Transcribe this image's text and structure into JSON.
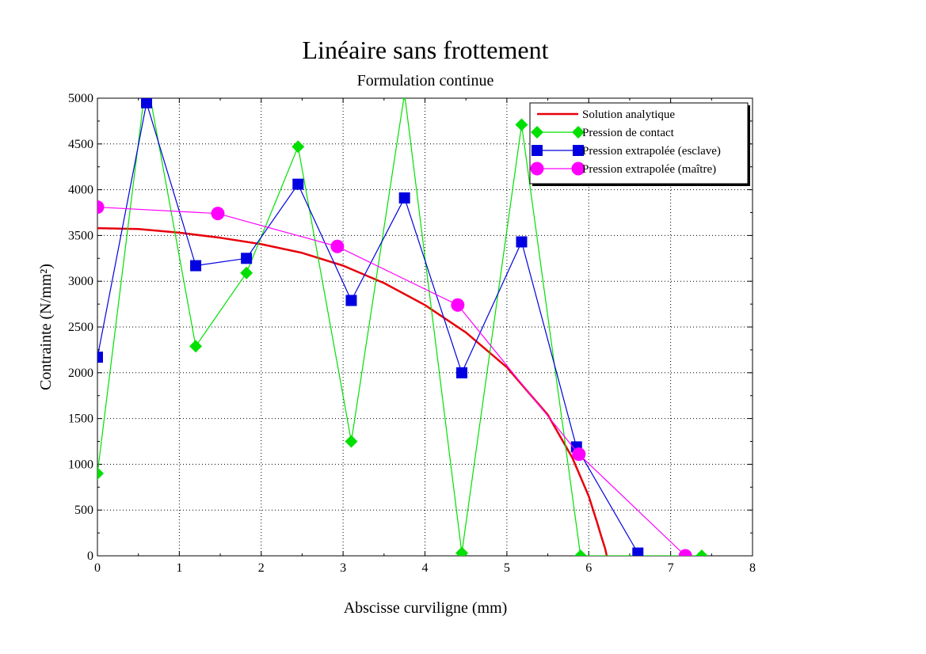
{
  "chart_data": {
    "type": "line",
    "title": "Linéaire sans frottement",
    "subtitle": "Formulation continue",
    "xlabel": "Abscisse curviligne (mm)",
    "ylabel": "Contrainte (N/mm²)",
    "xlim": [
      0,
      8
    ],
    "ylim": [
      0,
      5000
    ],
    "xticks": [
      "0",
      "1",
      "2",
      "3",
      "4",
      "5",
      "6",
      "7",
      "8"
    ],
    "yticks": [
      "0",
      "500",
      "1000",
      "1500",
      "2000",
      "2500",
      "3000",
      "3500",
      "4000",
      "4500",
      "5000"
    ],
    "grid": true,
    "legend_position": "top-right",
    "series": [
      {
        "name": "Solution analytique",
        "color": "#e8000b",
        "marker": "none",
        "x": [
          0,
          0.5,
          1.0,
          1.5,
          2.0,
          2.5,
          3.0,
          3.5,
          4.0,
          4.5,
          5.0,
          5.5,
          5.8,
          6.0,
          6.1,
          6.15,
          6.2,
          6.22
        ],
        "y": [
          3580,
          3570,
          3530,
          3475,
          3405,
          3310,
          3170,
          2980,
          2740,
          2440,
          2060,
          1540,
          1070,
          650,
          370,
          220,
          80,
          0
        ]
      },
      {
        "name": "Pression de contact",
        "color": "#00e000",
        "marker": "diamond",
        "x": [
          0,
          0.6,
          1.2,
          1.82,
          2.45,
          3.1,
          3.75,
          4.45,
          5.18,
          5.9,
          7.38
        ],
        "y": [
          900,
          5230,
          2290,
          3090,
          4470,
          1250,
          5050,
          30,
          4710,
          0,
          0
        ]
      },
      {
        "name": "Pression extrapolée (esclave)",
        "color": "#0000e0",
        "marker": "square",
        "x": [
          0,
          0.6,
          1.2,
          1.82,
          2.45,
          3.1,
          3.75,
          4.45,
          5.18,
          5.85,
          6.6
        ],
        "y": [
          2170,
          4950,
          3170,
          3250,
          4060,
          2790,
          3910,
          2000,
          3430,
          1190,
          30
        ]
      },
      {
        "name": "Pression extrapolée (maître)",
        "color": "#ff00ff",
        "marker": "circle",
        "x": [
          0,
          1.47,
          2.93,
          4.4,
          5.88,
          7.18
        ],
        "y": [
          3810,
          3740,
          3380,
          2740,
          1110,
          0
        ]
      }
    ]
  }
}
